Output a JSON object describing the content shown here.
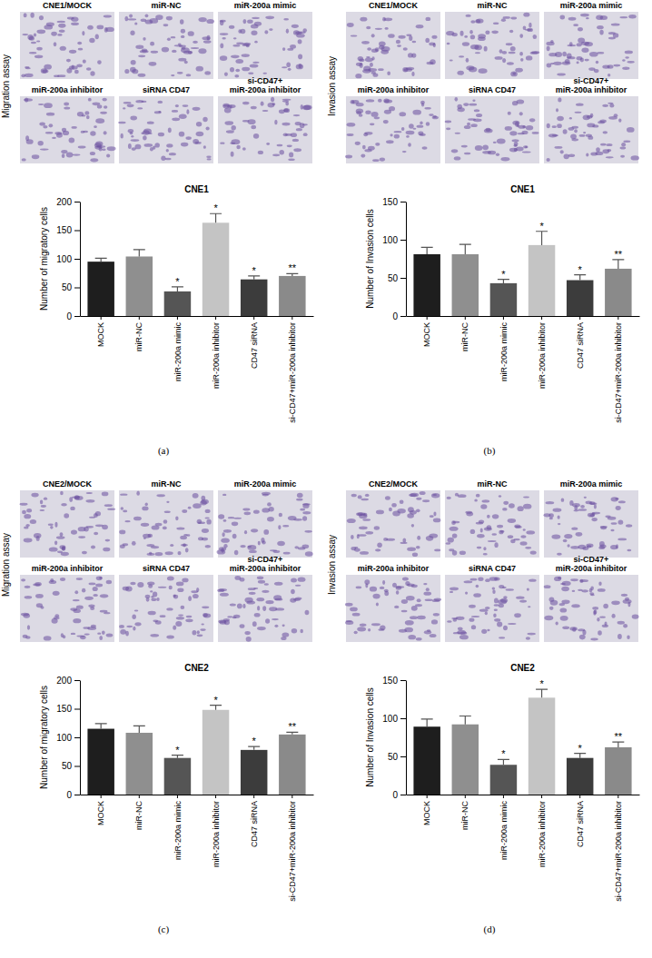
{
  "chart_data": [
    {
      "type": "bar",
      "panel_label": "(a)",
      "image_title": "Migration assay",
      "image_labels": [
        [
          "CNE1/MOCK"
        ],
        [
          "miR-NC"
        ],
        [
          "miR-200a mimic"
        ],
        [
          "miR-200a inhibitor"
        ],
        [
          "siRNA CD47"
        ],
        [
          "si-CD47+",
          "miR-200a inhibitor"
        ]
      ],
      "title": "CNE1",
      "y_label": "Number of migratory cells",
      "categories": [
        "MOCK",
        "miR-NC",
        "miR-200a mimic",
        "miR-200a inhibitor",
        "CD47 siRNA",
        "si-CD47+miR-200a inhibitor"
      ],
      "values": [
        95,
        104,
        43,
        163,
        64,
        70
      ],
      "errors": [
        6,
        12,
        8,
        16,
        6,
        4
      ],
      "significance": [
        null,
        null,
        "*",
        "*",
        "*",
        "**"
      ],
      "colors": [
        "#1e1e1e",
        "#8f8f8f",
        "#555555",
        "#c4c4c4",
        "#3c3c3c",
        "#8a8a8a"
      ],
      "ylim": [
        0,
        200
      ],
      "yticks": [
        0,
        50,
        100,
        150,
        200
      ]
    },
    {
      "type": "bar",
      "panel_label": "(b)",
      "image_title": "Invasion assay",
      "image_labels": [
        [
          "CNE1/MOCK"
        ],
        [
          "miR-NC"
        ],
        [
          "miR-200a mimic"
        ],
        [
          "miR-200a inhibitor"
        ],
        [
          "siRNA CD47"
        ],
        [
          "si-CD47+",
          "miR-200a inhibitor"
        ]
      ],
      "title": "CNE1",
      "y_label": "Number of Invasion cells",
      "categories": [
        "MOCK",
        "miR-NC",
        "miR-200a mimic",
        "miR-200a inhibitor",
        "CD47 siRNA",
        "si-CD47+miR-200a inhibitor"
      ],
      "values": [
        81,
        81,
        43,
        93,
        47,
        62
      ],
      "errors": [
        9,
        13,
        5,
        18,
        7,
        12
      ],
      "significance": [
        null,
        null,
        "*",
        "*",
        "*",
        "**"
      ],
      "colors": [
        "#1e1e1e",
        "#8f8f8f",
        "#555555",
        "#c4c4c4",
        "#3c3c3c",
        "#8a8a8a"
      ],
      "ylim": [
        0,
        150
      ],
      "yticks": [
        0,
        50,
        100,
        150
      ]
    },
    {
      "type": "bar",
      "panel_label": "(c)",
      "image_title": "Migration assay",
      "image_labels": [
        [
          "CNE2/MOCK"
        ],
        [
          "miR-NC"
        ],
        [
          "miR-200a mimic"
        ],
        [
          "miR-200a inhibitor"
        ],
        [
          "siRNA CD47"
        ],
        [
          "si-CD47+",
          "miR-200a inhibitor"
        ]
      ],
      "title": "CNE2",
      "y_label": "Number of migratory cells",
      "categories": [
        "MOCK",
        "miR-NC",
        "miR-200a mimic",
        "miR-200a inhibitor",
        "CD47 siRNA",
        "si-CD47+miR-200a inhibitor"
      ],
      "values": [
        115,
        108,
        64,
        148,
        78,
        105
      ],
      "errors": [
        9,
        12,
        5,
        8,
        6,
        4
      ],
      "significance": [
        null,
        null,
        "*",
        "*",
        "*",
        "**"
      ],
      "colors": [
        "#1e1e1e",
        "#8f8f8f",
        "#555555",
        "#c4c4c4",
        "#3c3c3c",
        "#8a8a8a"
      ],
      "ylim": [
        0,
        200
      ],
      "yticks": [
        0,
        50,
        100,
        150,
        200
      ]
    },
    {
      "type": "bar",
      "panel_label": "(d)",
      "image_title": "Invasion assay",
      "image_labels": [
        [
          "CNE2/MOCK"
        ],
        [
          "miR-NC"
        ],
        [
          "miR-200a mimic"
        ],
        [
          "miR-200a inhibitor"
        ],
        [
          "siRNA CD47"
        ],
        [
          "si-CD47+",
          "miR-200a inhibitor"
        ]
      ],
      "title": "CNE2",
      "y_label": "Number of Invasion cells",
      "categories": [
        "MOCK",
        "miR-NC",
        "miR-200a mimic",
        "miR-200a inhibitor",
        "CD47 siRNA",
        "si-CD47+miR-200a inhibitor"
      ],
      "values": [
        89,
        92,
        39,
        127,
        48,
        62
      ],
      "errors": [
        10,
        11,
        7,
        11,
        6,
        7
      ],
      "significance": [
        null,
        null,
        "*",
        "*",
        "*",
        "**"
      ],
      "colors": [
        "#1e1e1e",
        "#8f8f8f",
        "#555555",
        "#c4c4c4",
        "#3c3c3c",
        "#8a8a8a"
      ],
      "ylim": [
        0,
        150
      ],
      "yticks": [
        0,
        50,
        100,
        150
      ]
    }
  ]
}
